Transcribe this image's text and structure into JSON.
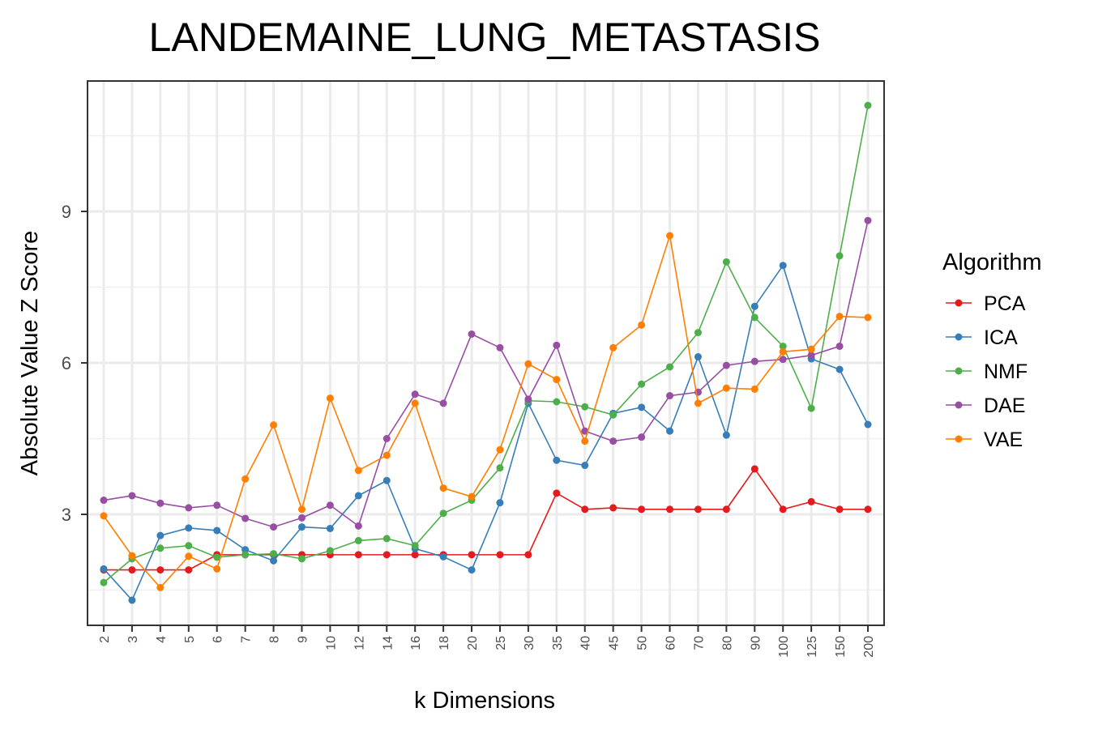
{
  "chart_data": {
    "type": "line",
    "title": "LANDEMAINE_LUNG_METASTASIS",
    "xlabel": "k Dimensions",
    "ylabel": "Absolute Value Z Score",
    "categories": [
      "2",
      "3",
      "4",
      "5",
      "6",
      "7",
      "8",
      "9",
      "10",
      "12",
      "14",
      "16",
      "18",
      "20",
      "25",
      "30",
      "35",
      "40",
      "45",
      "50",
      "60",
      "70",
      "80",
      "90",
      "100",
      "125",
      "150",
      "200"
    ],
    "y_ticks": [
      3,
      6,
      9
    ],
    "ylim": [
      0.75,
      11.5
    ],
    "grid": true,
    "legend": {
      "title": "Algorithm",
      "position": "right"
    },
    "series": [
      {
        "name": "PCA",
        "color": "#E41A1C",
        "values": [
          1.9,
          1.9,
          1.9,
          1.9,
          2.2,
          2.2,
          2.2,
          2.2,
          2.2,
          2.2,
          2.2,
          2.2,
          2.2,
          2.2,
          2.2,
          2.2,
          3.42,
          3.1,
          3.13,
          3.1,
          3.1,
          3.1,
          3.1,
          3.9,
          3.1,
          3.25,
          3.1,
          3.1
        ]
      },
      {
        "name": "ICA",
        "color": "#377EB8",
        "values": [
          1.92,
          1.3,
          2.58,
          2.73,
          2.68,
          2.3,
          2.08,
          2.75,
          2.72,
          3.37,
          3.67,
          2.32,
          2.16,
          1.9,
          3.23,
          5.2,
          4.07,
          3.97,
          5.0,
          5.12,
          4.65,
          6.12,
          4.57,
          7.12,
          7.93,
          6.08,
          5.87,
          4.78
        ]
      },
      {
        "name": "NMF",
        "color": "#4DAF4A",
        "values": [
          1.65,
          2.12,
          2.33,
          2.38,
          2.15,
          2.2,
          2.22,
          2.12,
          2.28,
          2.48,
          2.52,
          2.38,
          3.02,
          3.28,
          3.92,
          5.25,
          5.23,
          5.13,
          4.97,
          5.58,
          5.92,
          6.6,
          8.0,
          6.9,
          6.33,
          5.1,
          8.12,
          11.1
        ]
      },
      {
        "name": "DAE",
        "color": "#984EA3",
        "values": [
          3.28,
          3.37,
          3.22,
          3.13,
          3.18,
          2.92,
          2.75,
          2.93,
          3.18,
          2.77,
          4.5,
          5.38,
          5.2,
          6.57,
          6.3,
          5.28,
          6.35,
          4.65,
          4.45,
          4.53,
          5.35,
          5.42,
          5.95,
          6.03,
          6.07,
          6.15,
          6.33,
          8.82
        ]
      },
      {
        "name": "VAE",
        "color": "#FF7F00",
        "values": [
          2.97,
          2.18,
          1.55,
          2.17,
          1.92,
          3.7,
          4.77,
          3.1,
          5.3,
          3.87,
          4.17,
          5.2,
          3.52,
          3.35,
          4.28,
          5.98,
          5.67,
          4.45,
          6.3,
          6.75,
          8.52,
          5.2,
          5.5,
          5.48,
          6.22,
          6.27,
          6.92,
          6.9
        ]
      }
    ]
  }
}
